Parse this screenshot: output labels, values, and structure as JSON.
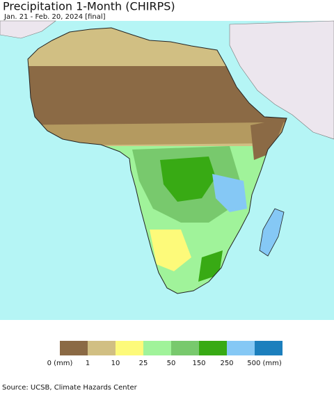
{
  "header": {
    "title": "Precipitation 1-Month (CHIRPS)",
    "subtitle": "Jan. 21 - Feb. 20, 2024 [final]"
  },
  "legend": {
    "colors": [
      "#8b6a45",
      "#d1bf83",
      "#fdfa7a",
      "#a0f39a",
      "#78c96d",
      "#38aa14",
      "#85c8f5",
      "#1c7fbd"
    ],
    "labels": [
      "0 (mm)",
      "1",
      "10",
      "25",
      "50",
      "150",
      "250",
      "500 (mm)"
    ]
  },
  "footer": {
    "source": "Source: UCSB, Climate Hazards Center"
  }
}
